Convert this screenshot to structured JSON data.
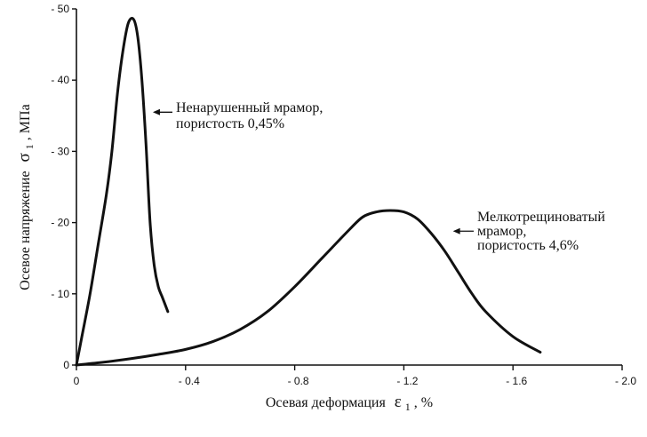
{
  "chart_data": {
    "type": "line",
    "xlabel": "Осевая деформация",
    "xlabel_symbol": "ε",
    "xlabel_sub": "1",
    "xlabel_unit": ", %",
    "ylabel": "Осевое напряжение",
    "ylabel_symbol": "σ",
    "ylabel_sub": "1",
    "ylabel_unit": ", МПа",
    "xlim": [
      0,
      2.0
    ],
    "ylim": [
      0,
      50
    ],
    "x_ticks": [
      {
        "value": 0,
        "label": "0"
      },
      {
        "value": 0.4,
        "label": "- 0.4"
      },
      {
        "value": 0.8,
        "label": "- 0.8"
      },
      {
        "value": 1.2,
        "label": "- 1.2"
      },
      {
        "value": 1.6,
        "label": "- 1.6"
      },
      {
        "value": 2.0,
        "label": "- 2.0"
      }
    ],
    "y_ticks": [
      {
        "value": 0,
        "label": "0"
      },
      {
        "value": 10,
        "label": "- 10"
      },
      {
        "value": 20,
        "label": "- 20"
      },
      {
        "value": 30,
        "label": "- 30"
      },
      {
        "value": 40,
        "label": "- 40"
      },
      {
        "value": 50,
        "label": "- 50"
      }
    ],
    "series": [
      {
        "x": [
          0,
          0.02,
          0.05,
          0.08,
          0.11,
          0.13,
          0.15,
          0.17,
          0.19,
          0.21,
          0.225,
          0.24,
          0.255,
          0.27,
          0.285,
          0.3,
          0.315,
          0.335
        ],
        "y": [
          0,
          4,
          10,
          17,
          24,
          30,
          38,
          44,
          48,
          48.5,
          46,
          40,
          31,
          20,
          14,
          11,
          9.5,
          7.5
        ]
      },
      {
        "x": [
          0,
          0.1,
          0.2,
          0.3,
          0.4,
          0.5,
          0.6,
          0.7,
          0.8,
          0.9,
          1.0,
          1.05,
          1.1,
          1.15,
          1.2,
          1.25,
          1.3,
          1.35,
          1.4,
          1.45,
          1.5,
          1.6,
          1.7
        ],
        "y": [
          0,
          0.4,
          0.9,
          1.5,
          2.2,
          3.3,
          5,
          7.5,
          11,
          15,
          19,
          20.8,
          21.5,
          21.7,
          21.5,
          20.5,
          18.5,
          16,
          13,
          10,
          7.5,
          4,
          1.8
        ]
      }
    ],
    "annotations": [
      {
        "lines": [
          "Ненарушенный мрамор,",
          "пористость 0,45%"
        ],
        "arrow_to": [
          0.28,
          35.5
        ]
      },
      {
        "lines": [
          "Мелкотрещиноватый",
          "мрамор,",
          "пористость 4,6%"
        ],
        "arrow_to": [
          1.38,
          18.8
        ]
      }
    ]
  }
}
